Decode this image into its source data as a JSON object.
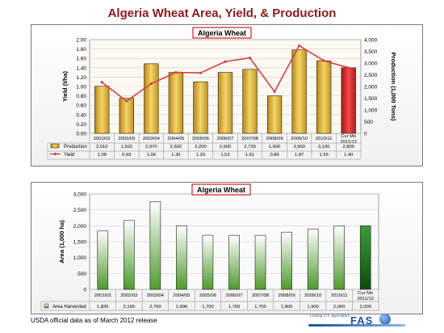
{
  "slide_title": "Algeria Wheat Area, Yield, & Production",
  "footer_note": "USDA official data as of March 2012 release",
  "logo": {
    "line1": "Linking U.S. Agriculture",
    "line2": "FAS",
    "line3": "to the World"
  },
  "colors": {
    "title": "#8b1a1a",
    "production_bar": "#d4a51f",
    "production_bar_highlight": "#e8c44a",
    "current_bar": "#cc2222",
    "yield_line": "#d64040",
    "area_bar": "#74b14a",
    "area_bar_current": "#1d6d1d",
    "chart_label_border": "#cc2222"
  },
  "chart_data": [
    {
      "type": "bar",
      "title": "Algeria Wheat",
      "categories": [
        "2001/02",
        "2002/03",
        "2003/04",
        "2004/05",
        "2005/06",
        "2006/07",
        "2007/08",
        "2008/09",
        "2009/10",
        "2010/11",
        "Cur Mo 2011/12"
      ],
      "category_lines": [
        [
          "2001/02"
        ],
        [
          "2002/03"
        ],
        [
          "2003/04"
        ],
        [
          "2004/05"
        ],
        [
          "2005/06"
        ],
        [
          "2006/07"
        ],
        [
          "2007/08"
        ],
        [
          "2008/09"
        ],
        [
          "2009/10"
        ],
        [
          "2010/11"
        ],
        [
          "Cur Mo",
          "2011/12"
        ]
      ],
      "series": [
        {
          "name": "Production",
          "type": "bar",
          "axis": "right",
          "values": [
            2010,
            1502,
            2970,
            2602,
            2200,
            2600,
            2730,
            1600,
            3560,
            3100,
            2800
          ],
          "display": [
            "2,010",
            "1,502",
            "2,970",
            "2,602",
            "2,200",
            "2,600",
            "2,730",
            "1,600",
            "3,560",
            "3,100",
            "2,800"
          ]
        },
        {
          "name": "Yield",
          "type": "line",
          "axis": "left",
          "values": [
            1.09,
            0.69,
            1.06,
            1.3,
            1.29,
            1.53,
            1.61,
            0.89,
            1.87,
            1.55,
            1.4
          ],
          "display": [
            "1.09",
            "0.69",
            "1.06",
            "1.30",
            "1.29",
            "1.53",
            "1.61",
            "0.89",
            "1.87",
            "1.55",
            "1.40"
          ]
        }
      ],
      "ylabel": "Yield (t/ha)",
      "ylim": [
        0,
        2.0
      ],
      "yticks": [
        "2.00",
        "1.80",
        "1.60",
        "1.40",
        "1.20",
        "1.00",
        "0.80",
        "0.60",
        "0.40",
        "0.20",
        "0.00"
      ],
      "y2label": "Production (1,000 Tons)",
      "y2lim": [
        0,
        4000
      ],
      "y2ticks": [
        "4,000",
        "3,500",
        "3,000",
        "2,500",
        "2,000",
        "1,500",
        "1,000",
        "500",
        "0"
      ],
      "grid": true,
      "legend": "data-table"
    },
    {
      "type": "bar",
      "title": "Algeria Wheat",
      "categories": [
        "2001/02",
        "2002/03",
        "2003/04",
        "2004/05",
        "2005/06",
        "2006/07",
        "2007/08",
        "2008/09",
        "2009/10",
        "2010/11",
        "Cur Mo 2011/12"
      ],
      "category_lines": [
        [
          "2001/02"
        ],
        [
          "2002/03"
        ],
        [
          "2003/04"
        ],
        [
          "2004/05"
        ],
        [
          "2005/06"
        ],
        [
          "2006/07"
        ],
        [
          "2007/08"
        ],
        [
          "2008/09"
        ],
        [
          "2009/10"
        ],
        [
          "2010/11"
        ],
        [
          "Cur Mo",
          "2011/12"
        ]
      ],
      "series": [
        {
          "name": "Area Harvested",
          "type": "bar",
          "values": [
            1836,
            2165,
            2760,
            1996,
            1700,
            1700,
            1700,
            1800,
            1900,
            2000,
            2000
          ],
          "display": [
            "1,836",
            "2,165",
            "2,760",
            "1,996",
            "1,700",
            "1,700",
            "1,700",
            "1,800",
            "1,900",
            "2,000",
            "2,000"
          ]
        }
      ],
      "ylabel": "Area (1,000 ha)",
      "ylim": [
        0,
        3000
      ],
      "yticks": [
        "3,000",
        "2,500",
        "2,000",
        "1,500",
        "1,000",
        "500",
        "0"
      ],
      "grid": true,
      "legend": "data-table"
    }
  ]
}
